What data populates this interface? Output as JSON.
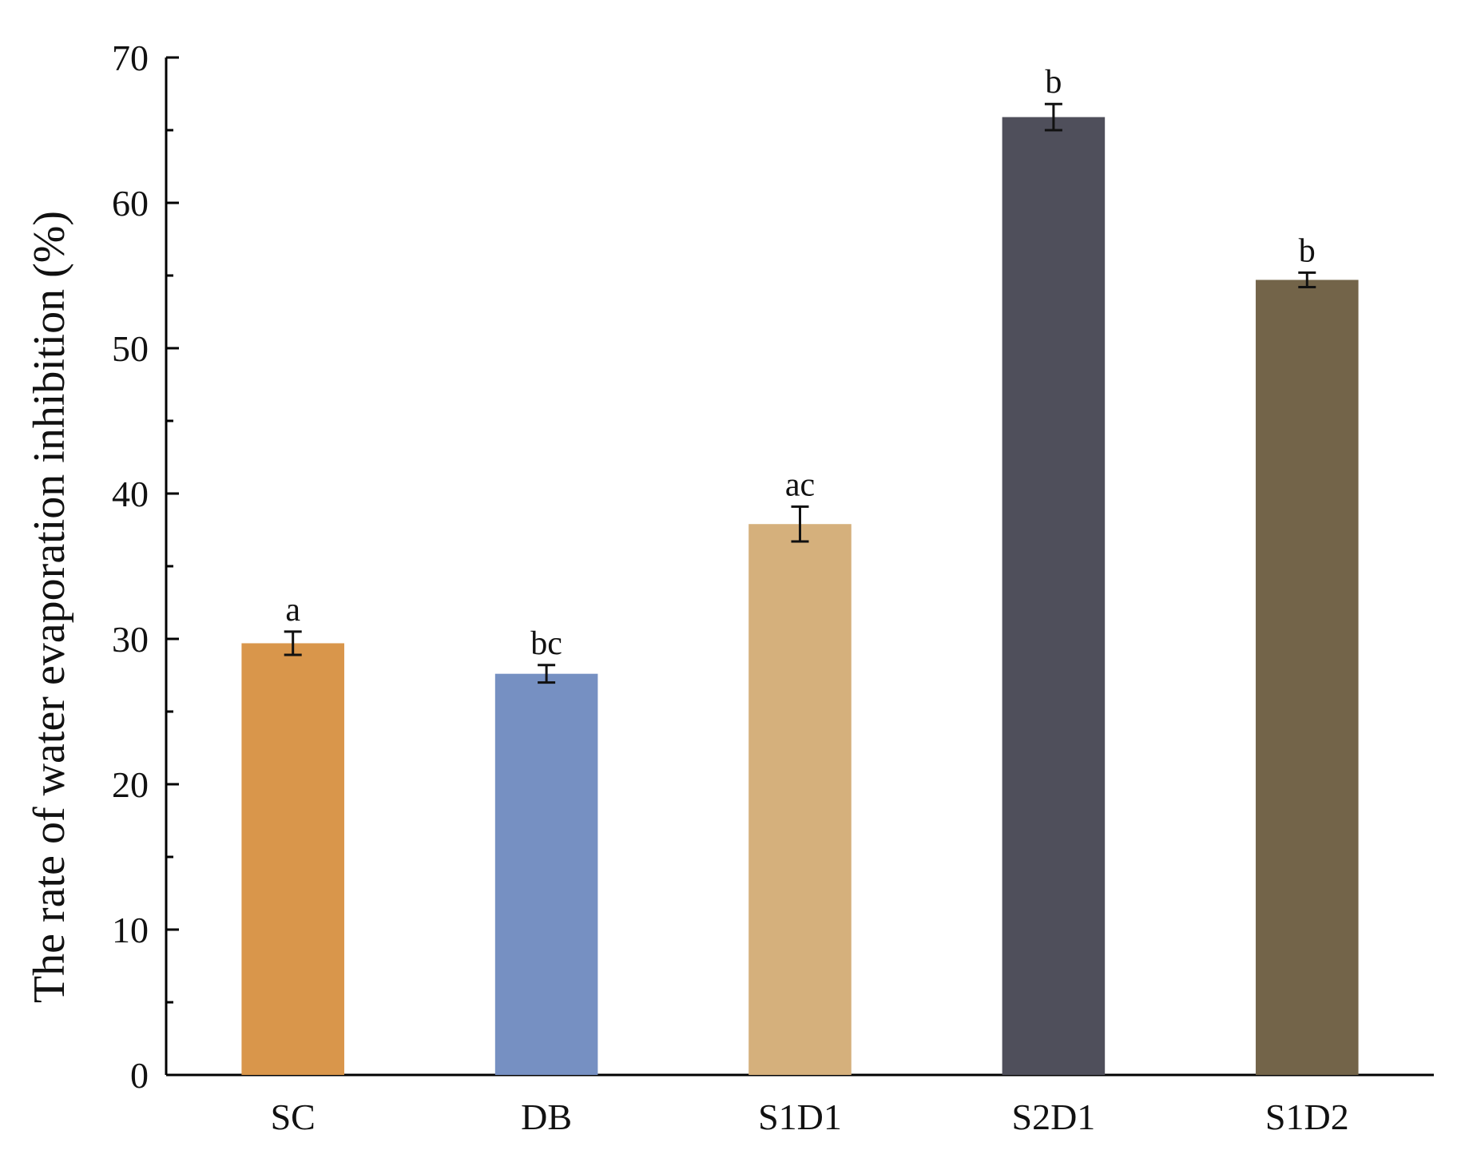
{
  "chart_data": {
    "type": "bar",
    "categories": [
      "SC",
      "DB",
      "S1D1",
      "S2D1",
      "S1D2"
    ],
    "values": [
      29.7,
      27.6,
      37.9,
      65.9,
      54.7
    ],
    "errors": [
      0.8,
      0.6,
      1.2,
      0.9,
      0.5
    ],
    "significance": [
      "a",
      "bc",
      "ac",
      "b",
      "b"
    ],
    "colors": [
      "#D9964B",
      "#7690C2",
      "#D5B07C",
      "#4F4F5B",
      "#736449"
    ],
    "ylabel": "The rate of water evaporation inhibition (%)",
    "xlabel": "",
    "ylim": [
      0,
      70
    ],
    "yticks": [
      0,
      10,
      20,
      30,
      40,
      50,
      60,
      70
    ],
    "grid": false
  }
}
